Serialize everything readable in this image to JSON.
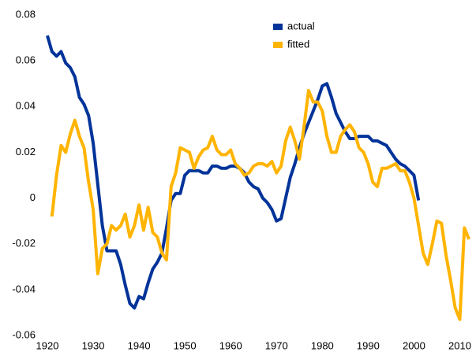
{
  "chart_data": {
    "type": "line",
    "x": [
      1920,
      1921,
      1922,
      1923,
      1924,
      1925,
      1926,
      1927,
      1928,
      1929,
      1930,
      1931,
      1932,
      1933,
      1934,
      1935,
      1936,
      1937,
      1938,
      1939,
      1940,
      1941,
      1942,
      1943,
      1944,
      1945,
      1946,
      1947,
      1948,
      1949,
      1950,
      1951,
      1952,
      1953,
      1954,
      1955,
      1956,
      1957,
      1958,
      1959,
      1960,
      1961,
      1962,
      1963,
      1964,
      1965,
      1966,
      1967,
      1968,
      1969,
      1970,
      1971,
      1972,
      1973,
      1974,
      1975,
      1976,
      1977,
      1978,
      1979,
      1980,
      1981,
      1982,
      1983,
      1984,
      1985,
      1986,
      1987,
      1988,
      1989,
      1990,
      1991,
      1992,
      1993,
      1994,
      1995,
      1996,
      1997,
      1998,
      1999,
      2000,
      2001,
      2002,
      2003,
      2004,
      2005,
      2006,
      2007,
      2008,
      2009,
      2010,
      2011,
      2012
    ],
    "series": [
      {
        "name": "actual",
        "color": "#003399",
        "values": [
          0.071,
          0.064,
          0.062,
          0.064,
          0.059,
          0.057,
          0.053,
          0.044,
          0.041,
          0.036,
          0.024,
          0.006,
          -0.012,
          -0.023,
          -0.023,
          -0.023,
          -0.029,
          -0.038,
          -0.046,
          -0.048,
          -0.043,
          -0.044,
          -0.037,
          -0.031,
          -0.028,
          -0.024,
          -0.013,
          -0.001,
          0.002,
          0.002,
          0.01,
          0.012,
          0.012,
          0.012,
          0.011,
          0.011,
          0.014,
          0.014,
          0.013,
          0.013,
          0.014,
          0.014,
          0.013,
          0.011,
          0.007,
          0.005,
          0.004,
          0.0,
          -0.002,
          -0.005,
          -0.01,
          -0.009,
          0.0,
          0.009,
          0.015,
          0.022,
          0.028,
          0.033,
          0.038,
          0.043,
          0.049,
          0.05,
          0.044,
          0.037,
          0.033,
          0.029,
          0.026,
          0.026,
          0.027,
          0.027,
          0.027,
          0.025,
          0.025,
          0.024,
          0.023,
          0.02,
          0.017,
          0.015,
          0.014,
          0.012,
          0.01,
          -0.001,
          null,
          null,
          null,
          null,
          null,
          null,
          null,
          null,
          null,
          null,
          null
        ]
      },
      {
        "name": "fitted",
        "color": "#ffb400",
        "values": [
          null,
          -0.008,
          0.01,
          0.023,
          0.02,
          0.028,
          0.034,
          0.027,
          0.022,
          0.007,
          -0.005,
          -0.033,
          -0.022,
          -0.02,
          -0.012,
          -0.014,
          -0.012,
          -0.007,
          -0.017,
          -0.012,
          -0.003,
          -0.014,
          -0.004,
          -0.015,
          -0.017,
          -0.024,
          -0.027,
          0.005,
          0.011,
          0.022,
          0.021,
          0.02,
          0.013,
          0.018,
          0.021,
          0.022,
          0.027,
          0.021,
          0.019,
          0.019,
          0.021,
          0.015,
          0.013,
          0.01,
          0.011,
          0.014,
          0.015,
          0.015,
          0.014,
          0.016,
          0.011,
          0.014,
          0.025,
          0.031,
          0.025,
          0.017,
          0.031,
          0.047,
          0.042,
          0.042,
          0.038,
          0.027,
          0.02,
          0.02,
          0.027,
          0.03,
          0.032,
          0.029,
          0.022,
          0.02,
          0.015,
          0.007,
          0.005,
          0.013,
          0.013,
          0.014,
          0.015,
          0.012,
          0.012,
          0.007,
          0.0,
          -0.012,
          -0.024,
          -0.029,
          -0.02,
          -0.01,
          -0.011,
          -0.025,
          -0.036,
          -0.048,
          -0.053,
          -0.013,
          -0.018
        ]
      }
    ],
    "xlim": [
      1920,
      2012.5
    ],
    "xticks": [
      1920,
      1930,
      1940,
      1950,
      1960,
      1970,
      1980,
      1990,
      2000,
      2010
    ],
    "ylim": [
      -0.06,
      0.08
    ],
    "yticks": [
      0.08,
      0.06,
      0.04,
      0.02,
      0,
      -0.02,
      -0.04,
      -0.06
    ],
    "grid": false,
    "legend": "top"
  }
}
